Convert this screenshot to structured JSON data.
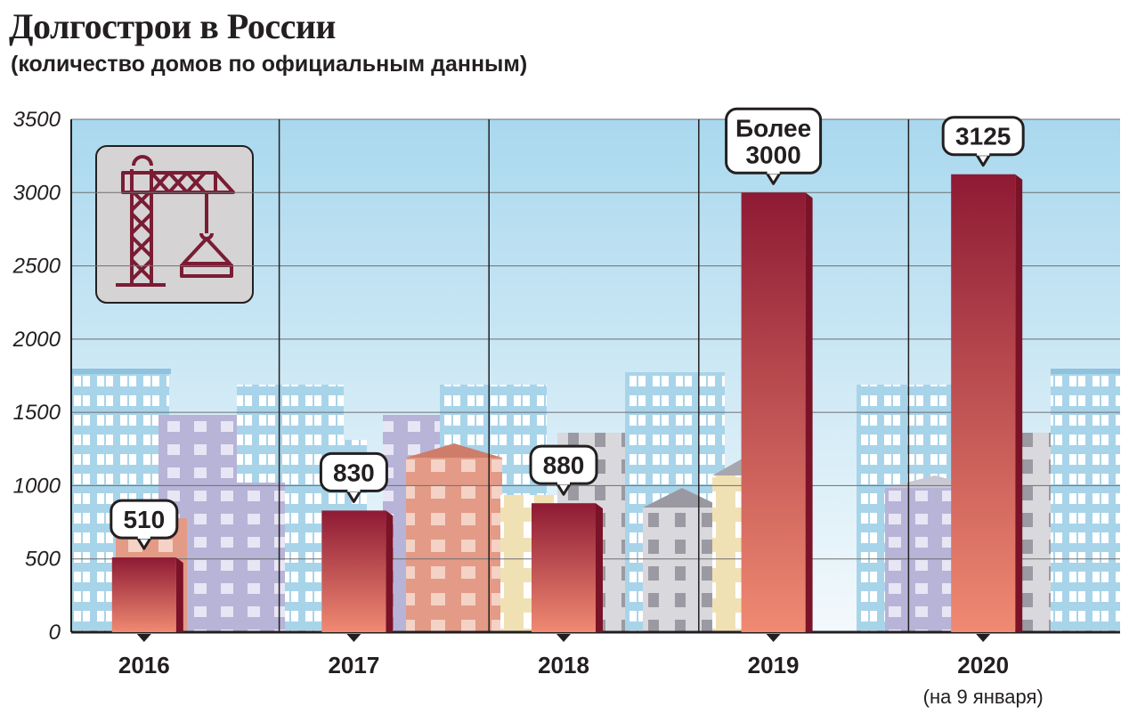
{
  "title": "Долгострои в России",
  "subtitle": "(количество домов по официальным данным)",
  "colors": {
    "bar_top": "#8e1a34",
    "bar_bottom": "#f08a72",
    "sky_top": "#a9d8ee",
    "sky_bottom": "#eef7fb",
    "icon_stroke": "#7a1c34"
  },
  "icon": "tower-crane-icon",
  "chart_data": {
    "type": "bar",
    "title": "Долгострои в России",
    "subtitle": "(количество домов по официальным данным)",
    "categories": [
      "2016",
      "2017",
      "2018",
      "2019",
      "2020"
    ],
    "category_notes": [
      "",
      "",
      "",
      "",
      "(на 9 января)"
    ],
    "values": [
      510,
      830,
      880,
      3000,
      3125
    ],
    "value_labels": [
      [
        "510"
      ],
      [
        "830"
      ],
      [
        "880"
      ],
      [
        "Более",
        "3000"
      ],
      [
        "3125"
      ]
    ],
    "yticks": [
      0,
      500,
      1000,
      1500,
      2000,
      2500,
      3000,
      3500
    ],
    "ylim": [
      0,
      3500
    ],
    "xlabel": "",
    "ylabel": "",
    "grid": true,
    "legend": "none"
  }
}
